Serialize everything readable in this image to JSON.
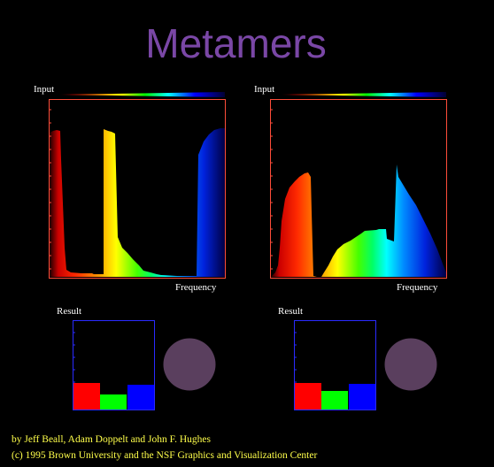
{
  "title": "Metamers",
  "colors": {
    "title": "#7a47a6",
    "spectrum_frame": "#ff4d3a",
    "result_frame": "#2a2aff",
    "swatch": "#5a3f5e",
    "credits": "#ffff4a"
  },
  "panels": [
    {
      "input_label": "Input",
      "frequency_label": "Frequency",
      "result_label": "Result",
      "result_bars": [
        {
          "name": "red",
          "color": "#ff0000",
          "value": 0.3
        },
        {
          "name": "green",
          "color": "#00ff00",
          "value": 0.17
        },
        {
          "name": "blue",
          "color": "#0000ff",
          "value": 0.28
        }
      ],
      "swatch_icon": "color-swatch-circle"
    },
    {
      "input_label": "Input",
      "frequency_label": "Frequency",
      "result_label": "Result",
      "result_bars": [
        {
          "name": "red",
          "color": "#ff0000",
          "value": 0.3
        },
        {
          "name": "green",
          "color": "#00ff00",
          "value": 0.21
        },
        {
          "name": "blue",
          "color": "#0000ff",
          "value": 0.29
        }
      ],
      "swatch_icon": "color-swatch-circle"
    }
  ],
  "credits": {
    "line1": "by Jeff Beall, Adam Doppelt and John F. Hughes",
    "line2": "(c) 1995 Brown University and the NSF Graphics and Visualization Center"
  }
}
